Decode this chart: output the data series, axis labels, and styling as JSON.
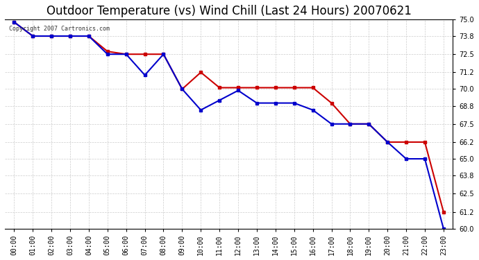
{
  "title": "Outdoor Temperature (vs) Wind Chill (Last 24 Hours) 20070621",
  "copyright": "Copyright 2007 Cartronics.com",
  "hours": [
    "00:00",
    "01:00",
    "02:00",
    "03:00",
    "04:00",
    "05:00",
    "06:00",
    "07:00",
    "08:00",
    "09:00",
    "10:00",
    "11:00",
    "12:00",
    "13:00",
    "14:00",
    "15:00",
    "16:00",
    "17:00",
    "18:00",
    "19:00",
    "20:00",
    "21:00",
    "22:00",
    "23:00"
  ],
  "temp": [
    74.8,
    73.8,
    73.8,
    73.8,
    73.8,
    72.7,
    72.5,
    72.5,
    72.5,
    70.0,
    71.2,
    70.1,
    70.1,
    70.1,
    70.1,
    70.1,
    70.1,
    69.0,
    67.5,
    67.5,
    66.2,
    66.2,
    66.2,
    61.2
  ],
  "windchill": [
    74.8,
    73.8,
    73.8,
    73.8,
    73.8,
    72.5,
    72.5,
    71.0,
    72.5,
    70.0,
    68.5,
    69.2,
    69.9,
    69.0,
    69.0,
    69.0,
    68.5,
    67.5,
    67.5,
    67.5,
    66.2,
    65.0,
    65.0,
    60.0
  ],
  "temp_color": "#cc0000",
  "windchill_color": "#0000cc",
  "ylim_min": 60.0,
  "ylim_max": 75.0,
  "yticks": [
    60.0,
    61.2,
    62.5,
    63.8,
    65.0,
    66.2,
    67.5,
    68.8,
    70.0,
    71.2,
    72.5,
    73.8,
    75.0
  ],
  "background_color": "#ffffff",
  "grid_color": "#cccccc",
  "title_fontsize": 12,
  "marker": "s",
  "marker_size": 3,
  "line_width": 1.5
}
